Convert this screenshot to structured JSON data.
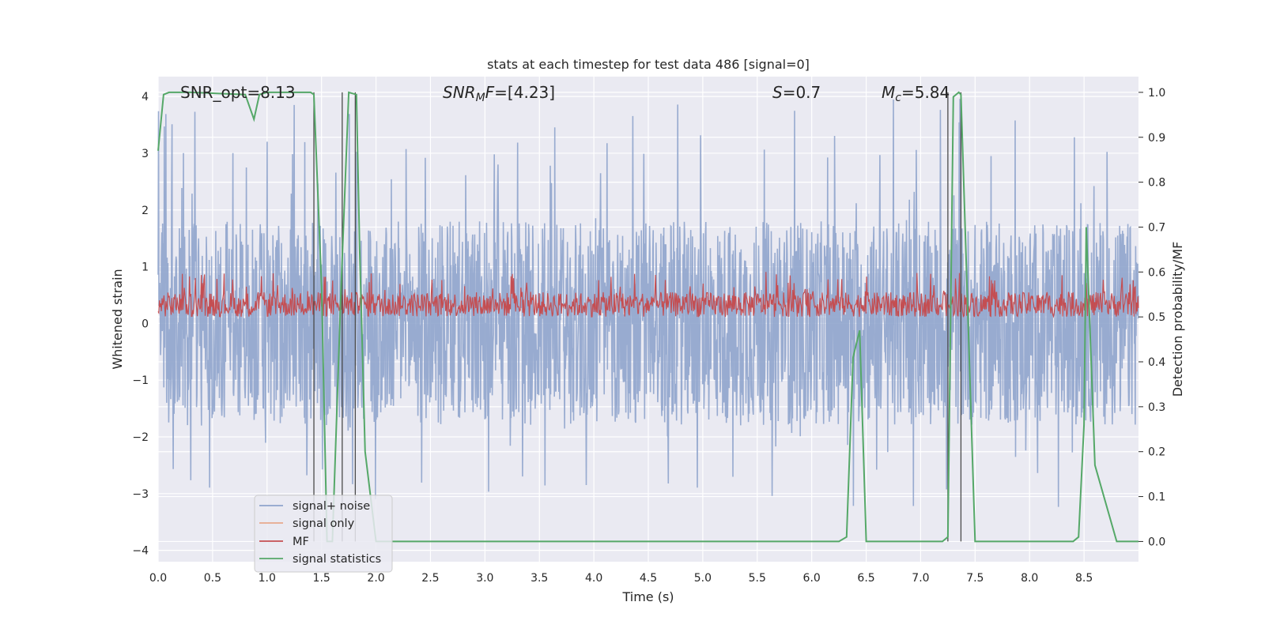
{
  "chart_data": {
    "type": "line",
    "title": "stats at each timestep for test data 486 [signal=0]",
    "xlabel": "Time (s)",
    "ylabel": "Whitened strain",
    "y2label": "Detection probability/MF",
    "xlim": [
      0.0,
      9.0
    ],
    "ylim": [
      -4.2,
      4.35
    ],
    "y2lim": [
      -0.045,
      1.035
    ],
    "xticks": [
      0.0,
      0.5,
      1.0,
      1.5,
      2.0,
      2.5,
      3.0,
      3.5,
      4.0,
      4.5,
      5.0,
      5.5,
      6.0,
      6.5,
      7.0,
      7.5,
      8.0,
      8.5
    ],
    "yticks": [
      -4,
      -3,
      -2,
      -1,
      0,
      1,
      2,
      3,
      4
    ],
    "y2ticks": [
      0.0,
      0.1,
      0.2,
      0.3,
      0.4,
      0.5,
      0.6,
      0.7,
      0.8,
      0.9,
      1.0
    ],
    "grid": true,
    "legend_position": "lower-left",
    "annotations": {
      "snr_opt": "SNR_opt=8.13",
      "snr_mf_base": "SNR",
      "snr_mf_sub": "M",
      "snr_mf_rest": "F=[4.23]",
      "s_sym": "S",
      "s_rest": "=0.7",
      "mc_sym": "M",
      "mc_sub": "c",
      "mc_rest": "=5.84"
    },
    "series": [
      {
        "name": "signal+ noise",
        "color": "#8fa4cc",
        "axis": "left",
        "description_values": "noisy strain, envelope approx -3.8 to 4.0"
      },
      {
        "name": "signal only",
        "color": "#e8a98c",
        "axis": "left",
        "values": []
      },
      {
        "name": "MF",
        "color": "#c44e52",
        "axis": "right",
        "range": [
          0.5,
          0.6
        ]
      },
      {
        "name": "signal statistics",
        "color": "#55a868",
        "axis": "right",
        "x": [
          0.0,
          0.05,
          0.1,
          0.3,
          0.8,
          0.88,
          0.93,
          1.0,
          1.4,
          1.43,
          1.5,
          1.55,
          1.6,
          1.68,
          1.75,
          1.82,
          1.85,
          1.9,
          2.0,
          6.25,
          6.32,
          6.38,
          6.44,
          6.5,
          7.2,
          7.25,
          7.3,
          7.35,
          7.37,
          7.5,
          8.4,
          8.45,
          8.5,
          8.52,
          8.6,
          8.8,
          9.0
        ],
        "y": [
          0.87,
          0.995,
          1.0,
          1.0,
          0.995,
          0.94,
          0.995,
          1.0,
          1.0,
          0.995,
          0.57,
          0.0,
          0.0,
          0.57,
          1.0,
          0.995,
          0.65,
          0.2,
          0.0,
          0.0,
          0.01,
          0.41,
          0.47,
          0.0,
          0.0,
          0.01,
          0.99,
          1.0,
          0.995,
          0.0,
          0.0,
          0.01,
          0.26,
          0.7,
          0.17,
          0.0,
          0.0
        ]
      }
    ],
    "vlines": [
      1.43,
      1.69,
      1.81,
      7.25,
      7.37
    ]
  }
}
